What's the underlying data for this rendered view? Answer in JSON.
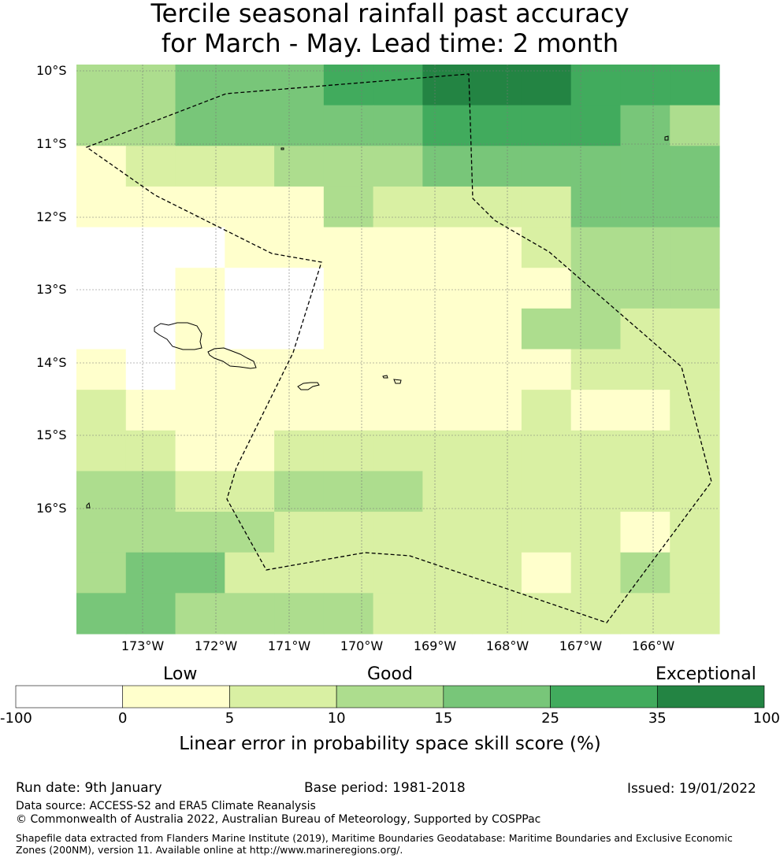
{
  "title": {
    "line1": "Tercile seasonal rainfall past accuracy",
    "line2": "for March - May. Lead time: 2 month"
  },
  "map": {
    "lat_labels": [
      "10°S",
      "11°S",
      "12°S",
      "13°S",
      "14°S",
      "15°S",
      "16°S"
    ],
    "lon_labels": [
      "173°W",
      "172°W",
      "171°W",
      "170°W",
      "169°W",
      "168°W",
      "167°W",
      "166°W"
    ],
    "grid_rows": [
      "3344455666555",
      "3344444555543",
      "1222333444444",
      "1111132222444",
      "0001111112333",
      "0010011111333",
      "0010011113322",
      "1011111111222",
      "2111111112112",
      "2211222222222",
      "3322333222222",
      "3333222222212",
      "3442222221232",
      "4433332222222"
    ],
    "class_colors": [
      "#ffffff",
      "#ffffcc",
      "#d9f0a3",
      "#addd8e",
      "#78c679",
      "#41ab5d",
      "#238443"
    ]
  },
  "legend": {
    "words": [
      "Low",
      "Good",
      "Exceptional"
    ],
    "ticks": [
      "-100",
      "0",
      "5",
      "10",
      "15",
      "25",
      "35",
      "100"
    ],
    "caption": "Linear error in probability space skill score (%)"
  },
  "footer": {
    "run_date": "Run date: 9th January",
    "base_period": "Base period: 1981-2018",
    "issued": "Issued: 19/01/2022",
    "data_source": "Data source: ACCESS-S2 and ERA5 Climate Reanalysis",
    "copyright": "© Commonwealth of Australia 2022, Australian Bureau of Meteorology, Supported by COSPPac",
    "shapefile": "Shapefile data extracted from Flanders Marine Institute (2019), Maritime Boundaries Geodatabase: Maritime Boundaries and Exclusive Economic Zones (200NM), version 11. Available online at http://www.marineregions.org/."
  }
}
